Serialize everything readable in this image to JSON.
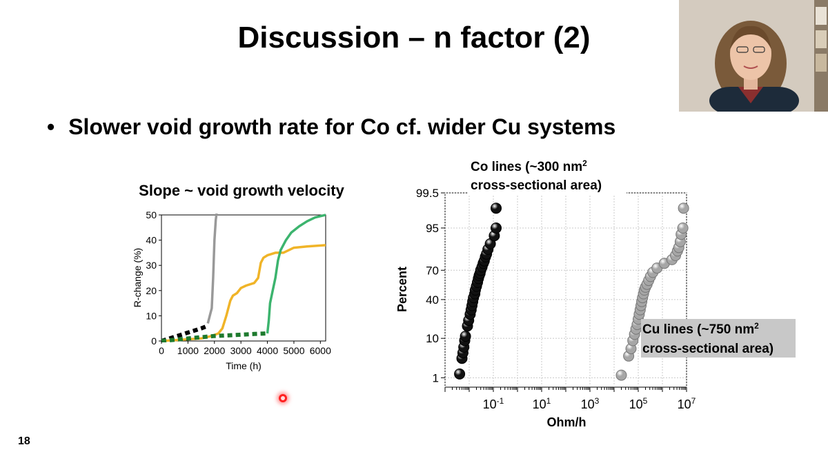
{
  "slide": {
    "title": "Discussion – n factor (2)",
    "bullet": "Slower void growth rate for Co cf. wider Cu systems",
    "bullet_marker": "•",
    "number": "18"
  },
  "chart_data": [
    {
      "type": "line",
      "title": "Slope ~ void growth velocity",
      "xlabel": "Time (h)",
      "ylabel": "R-change (%)",
      "xlim": [
        0,
        6200
      ],
      "ylim": [
        0,
        50
      ],
      "x_ticks": [
        0,
        1000,
        2000,
        3000,
        4000,
        5000,
        6000
      ],
      "y_ticks": [
        0,
        10,
        20,
        30,
        40,
        50
      ],
      "grid": false,
      "series": [
        {
          "color": "#999999",
          "style": "solid",
          "x": [
            1750,
            1850,
            1900,
            1950,
            2000,
            2050,
            2100
          ],
          "y": [
            7,
            11,
            13,
            25,
            40,
            48,
            52
          ]
        },
        {
          "color": "#000000",
          "style": "dashed",
          "x": [
            0,
            300,
            600,
            900,
            1200,
            1500,
            1750
          ],
          "y": [
            0,
            1,
            2,
            3,
            4,
            5,
            6
          ]
        },
        {
          "color": "#f0b428",
          "style": "solid",
          "x": [
            0,
            1500,
            1900,
            2150,
            2300,
            2450,
            2600,
            2700,
            2850,
            3000,
            3200,
            3500,
            3650,
            3750,
            3850,
            4000,
            4300,
            4600,
            5000,
            5500,
            6200
          ],
          "y": [
            0,
            1,
            2,
            3,
            5,
            10,
            16,
            18,
            19,
            21,
            22,
            23,
            25,
            31,
            33,
            34,
            35,
            35,
            37,
            37.5,
            38
          ]
        },
        {
          "color": "#3cb46e",
          "style": "solid",
          "x": [
            4000,
            4050,
            4100,
            4200,
            4300,
            4400,
            4500,
            4700,
            4900,
            5200,
            5500,
            5800,
            6000,
            6200
          ],
          "y": [
            3,
            8,
            15,
            20,
            25,
            32,
            36,
            40,
            43,
            45.5,
            47.5,
            49,
            49.5,
            50
          ]
        },
        {
          "color": "#1e7a2e",
          "style": "dashed",
          "x": [
            0,
            500,
            1000,
            1500,
            2000,
            2500,
            3000,
            3500,
            4000
          ],
          "y": [
            0,
            0.5,
            1,
            1.5,
            2,
            2.2,
            2.5,
            2.8,
            3
          ]
        }
      ]
    },
    {
      "type": "scatter",
      "xlabel": "Ohm/h",
      "ylabel": "Percent",
      "x_scale": "log",
      "y_scale": "probability",
      "xlim": [
        0.001,
        10000000
      ],
      "ylim": [
        0.5,
        99.5
      ],
      "x_tick_labels": [
        {
          "base": "10",
          "exp": "-1",
          "value": 0.1
        },
        {
          "base": "10",
          "exp": "1",
          "value": 10
        },
        {
          "base": "10",
          "exp": "3",
          "value": 1000
        },
        {
          "base": "10",
          "exp": "5",
          "value": 100000
        },
        {
          "base": "10",
          "exp": "7",
          "value": 10000000
        }
      ],
      "y_tick_labels": [
        "99.5",
        "95",
        "70",
        "40",
        "10",
        "1"
      ],
      "y_tick_values": [
        99.5,
        95,
        70,
        40,
        10,
        1
      ],
      "grid": true,
      "annotations": {
        "co_line1": "Co lines (~300 nm",
        "co_sup": "2",
        "co_line2": "cross-sectional area)",
        "cu_line1": "Cu lines (~750 nm",
        "cu_sup": "2",
        "cu_line2": "cross-sectional area)"
      },
      "series": [
        {
          "color": "#111111",
          "points": [
            [
              0.004,
              1.3
            ],
            [
              0.005,
              3.5
            ],
            [
              0.0055,
              4.8
            ],
            [
              0.006,
              6.5
            ],
            [
              0.0065,
              9
            ],
            [
              0.007,
              11
            ],
            [
              0.0085,
              17
            ],
            [
              0.0095,
              21
            ],
            [
              0.011,
              26
            ],
            [
              0.012,
              30
            ],
            [
              0.013,
              34
            ],
            [
              0.014,
              38
            ],
            [
              0.015,
              42
            ],
            [
              0.017,
              46
            ],
            [
              0.018,
              50
            ],
            [
              0.02,
              54
            ],
            [
              0.022,
              58
            ],
            [
              0.024,
              62
            ],
            [
              0.026,
              65
            ],
            [
              0.028,
              67
            ],
            [
              0.03,
              70
            ],
            [
              0.034,
              73
            ],
            [
              0.038,
              76
            ],
            [
              0.042,
              78
            ],
            [
              0.047,
              81
            ],
            [
              0.052,
              83
            ],
            [
              0.06,
              86
            ],
            [
              0.075,
              89
            ],
            [
              0.11,
              92.5
            ],
            [
              0.13,
              95
            ],
            [
              0.13,
              98.5
            ]
          ]
        },
        {
          "color": "#a6a6a6",
          "points": [
            [
              20000,
              1.2
            ],
            [
              40000,
              4.0
            ],
            [
              50000,
              6
            ],
            [
              60000,
              9
            ],
            [
              70000,
              12
            ],
            [
              80000,
              15
            ],
            [
              90000,
              18
            ],
            [
              100000,
              22
            ],
            [
              110000,
              26
            ],
            [
              120000,
              30
            ],
            [
              130000,
              34
            ],
            [
              140000,
              38
            ],
            [
              150000,
              42
            ],
            [
              165000,
              46
            ],
            [
              180000,
              50
            ],
            [
              200000,
              53
            ],
            [
              230000,
              56
            ],
            [
              270000,
              60
            ],
            [
              320000,
              64
            ],
            [
              400000,
              68
            ],
            [
              600000,
              72
            ],
            [
              1200000,
              76
            ],
            [
              2500000,
              79
            ],
            [
              3500000,
              82
            ],
            [
              4200000,
              85
            ],
            [
              4800000,
              87
            ],
            [
              5500000,
              90
            ],
            [
              6000000,
              93
            ],
            [
              7000000,
              95
            ],
            [
              7500000,
              98.5
            ]
          ]
        }
      ]
    }
  ]
}
